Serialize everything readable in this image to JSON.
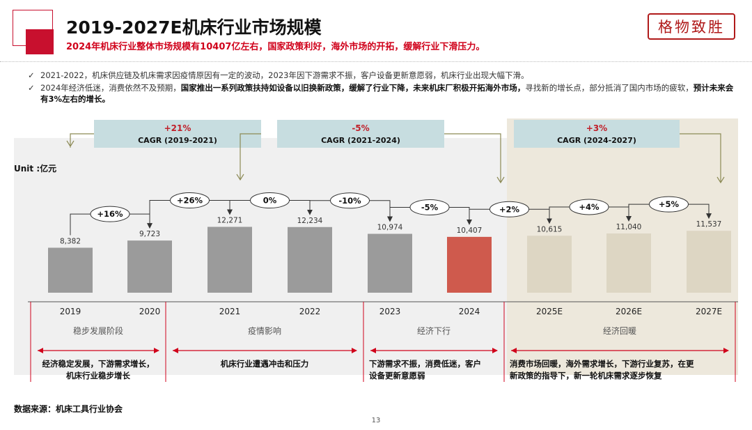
{
  "header": {
    "title": "2019-2027E机床行业市场规模",
    "subtitle": "2024年机床行业整体市场规模有10407亿左右，国家政策利好，海外市场的开拓，缓解行业下滑压力。",
    "brand": "格物致胜"
  },
  "bullets": [
    {
      "pre": "2021-2022，机床供应链及机床需求因疫情原因有一定的波动，2023年因下游需求不振，客户设备更新意愿弱，机床行业出现大幅下滑。",
      "bold": "",
      "post": "",
      "bold2": ""
    },
    {
      "pre": "2024年经济低迷，消费依然不及预期，",
      "bold": "国家推出一系列政策扶持如设备以旧换新政策，缓解了行业下降，未来机床厂积极开拓海外市场，",
      "post": "寻找新的增长点，部分抵消了国内市场的疲软，",
      "bold2": "预计未来会有3%左右的增长。"
    }
  ],
  "footer": {
    "source": "数据来源：机床工具行业协会",
    "page": "13"
  },
  "chart_data": {
    "type": "bar",
    "unit_label": "Unit :亿元",
    "categories": [
      "2019",
      "2020",
      "2021",
      "2022",
      "2023",
      "2024",
      "2025E",
      "2026E",
      "2027E"
    ],
    "values": [
      8382,
      9723,
      12271,
      12234,
      10974,
      10407,
      10615,
      11040,
      11537
    ],
    "value_labels": [
      "8,382",
      "9,723",
      "12,271",
      "12,234",
      "10,974",
      "10,407",
      "10,615",
      "11,040",
      "11,537"
    ],
    "bar_colors": [
      "#9b9b9b",
      "#9b9b9b",
      "#9b9b9b",
      "#9b9b9b",
      "#9b9b9b",
      "#cf5a4d",
      "#ddd6c3",
      "#ddd6c3",
      "#ddd6c3"
    ],
    "growth_labels": [
      "+16%",
      "+26%",
      "0%",
      "-10%",
      "-5%",
      "+2%",
      "+4%",
      "+5%"
    ],
    "cagr": [
      {
        "value": "+21%",
        "label": "CAGR (2019-2021)",
        "color": "#c0202a"
      },
      {
        "value": "-5%",
        "label": "CAGR (2021-2024)",
        "color": "#c0202a"
      },
      {
        "value": "+3%",
        "label": "CAGR (2024-2027)",
        "color": "#c0202a"
      }
    ],
    "phases": [
      {
        "name": "稳步发展阶段",
        "desc_lines": [
          "经济稳定发展，下游需求增长，",
          "机床行业稳步增长"
        ]
      },
      {
        "name": "疫情影响",
        "desc_lines": [
          "机床行业遭遇冲击和压力"
        ]
      },
      {
        "name": "经济下行",
        "desc_lines": [
          "下游需求不振，消费低迷，客户",
          "设备更新意愿弱"
        ]
      },
      {
        "name": "经济回暖",
        "desc_lines": [
          "消费市场回暖，海外需求增长，下游行业复苏，在更",
          "新政策的指导下，新一轮机床需求逐步恢复"
        ]
      }
    ],
    "colors": {
      "cagr_box": "#c7dde0",
      "background_band": "#f0f0f0",
      "forecast_band": "#ede8dc",
      "accent_red": "#d0021b",
      "arrow": "#333333"
    }
  }
}
